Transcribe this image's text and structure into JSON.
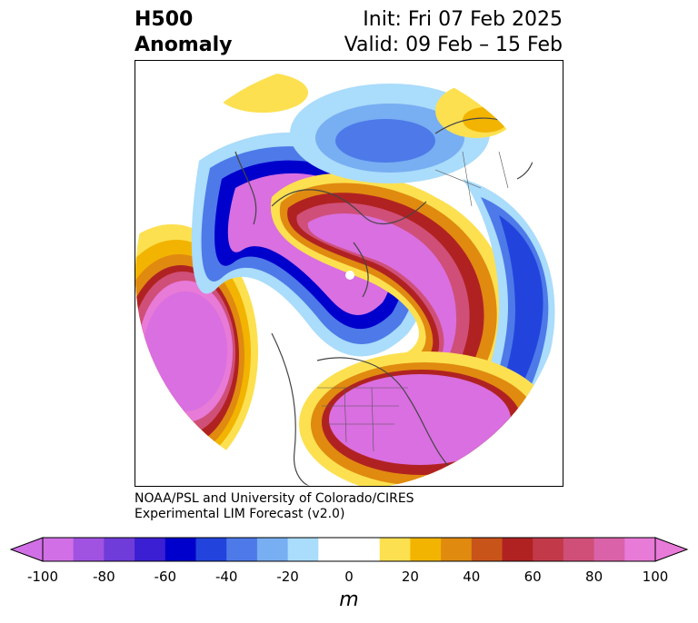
{
  "title": {
    "left_line1": "H500",
    "left_line2": "Anomaly",
    "right_line1": "Init: Fri 07 Feb 2025",
    "right_line2": "Valid: 09 Feb – 15 Feb"
  },
  "credit": {
    "line1": "NOAA/PSL and University of Colorado/CIRES",
    "line2": "Experimental LIM Forecast (v2.0)"
  },
  "colorbar": {
    "unit": "m",
    "colors": [
      "#d16fe6",
      "#a052e0",
      "#6f3bd9",
      "#3b1fd2",
      "#0000cc",
      "#2244dd",
      "#4d7ae8",
      "#78aef2",
      "#aadcfb",
      "#ffffff",
      "#ffffff",
      "#fde050",
      "#f2b400",
      "#e08a10",
      "#c8541a",
      "#b02222",
      "#c23a4a",
      "#cf4f78",
      "#da62a8",
      "#e87ad8"
    ],
    "ticks": [
      "-100",
      "-80",
      "-60",
      "-40",
      "-20",
      "0",
      "20",
      "40",
      "60",
      "80",
      "100"
    ]
  },
  "colors": {
    "strong_positive": "#d96fe0",
    "red": "#b02222",
    "orange": "#e08a10",
    "yellow": "#fde050",
    "light_blue": "#aadcfb",
    "mid_blue": "#4d7ae8",
    "dark_blue": "#0000cc",
    "land_outline": "#444444"
  }
}
